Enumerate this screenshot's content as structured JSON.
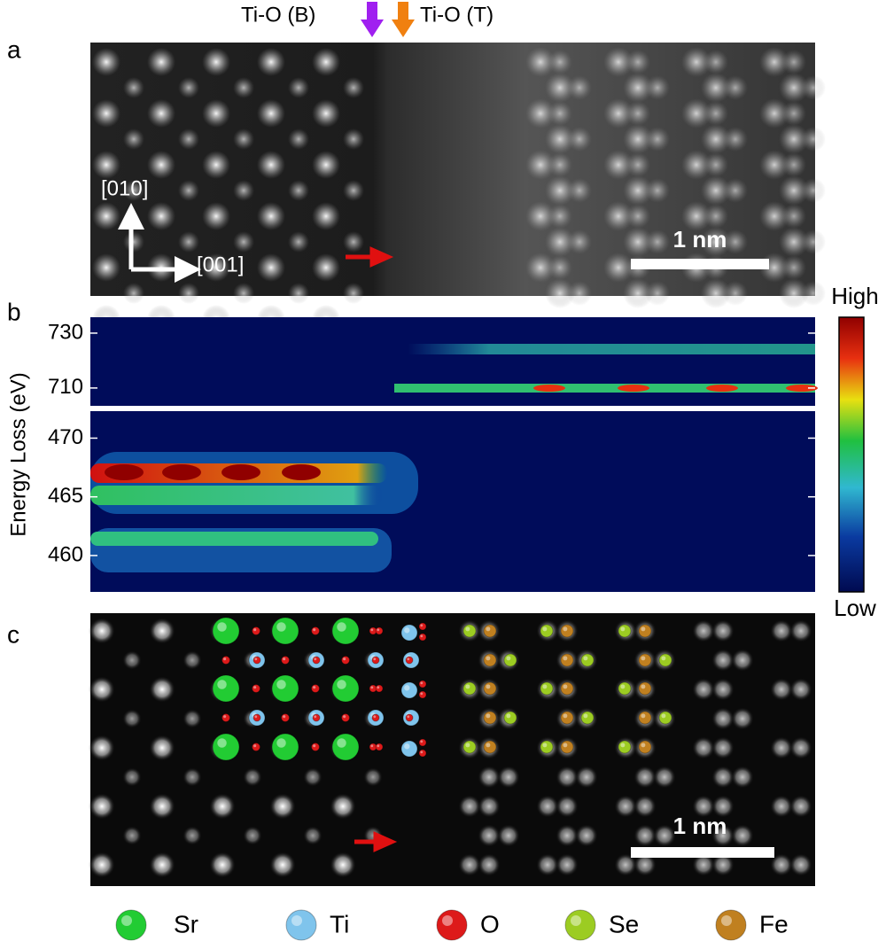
{
  "panel_a": {
    "label": "a",
    "annotations": [
      "Ti-O (B)",
      "Ti-O (T)"
    ],
    "axes": [
      "[010]",
      "[001]"
    ],
    "scale_bar": "1 nm"
  },
  "panel_b": {
    "label": "b",
    "ylabel": "Energy Loss (eV)",
    "upper": {
      "ylim": [
        703.5,
        735.8
      ],
      "yticks": [
        710,
        730
      ]
    },
    "lower": {
      "ylim": [
        456.9,
        472.3
      ],
      "yticks": [
        460,
        465,
        470
      ]
    },
    "colorbar": {
      "high": "High",
      "low": "Low"
    }
  },
  "panel_c": {
    "label": "c",
    "scale_bar": "1 nm"
  },
  "legend": [
    {
      "name": "Sr",
      "color": "#22cc33"
    },
    {
      "name": "Ti",
      "color": "#7fc4ec"
    },
    {
      "name": "O",
      "color": "#dd1a1a"
    },
    {
      "name": "Se",
      "color": "#9ccc22"
    },
    {
      "name": "Fe",
      "color": "#c08020"
    }
  ]
}
